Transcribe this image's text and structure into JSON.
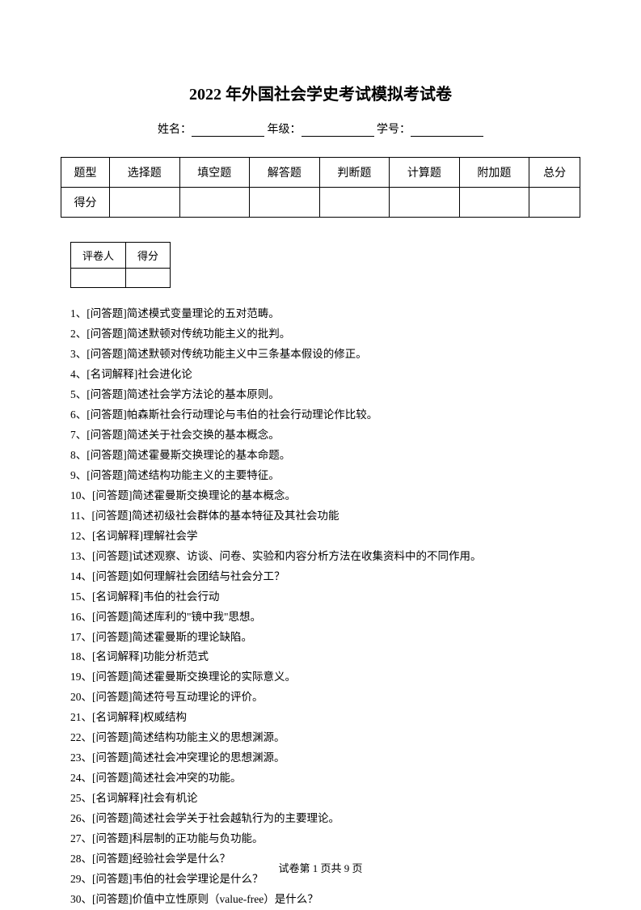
{
  "title": "2022 年外国社会学史考试模拟考试卷",
  "info": {
    "name_label": "姓名：",
    "grade_label": " 年级：",
    "id_label": " 学号："
  },
  "main_table": {
    "header_row": [
      "题型",
      "选择题",
      "填空题",
      "解答题",
      "判断题",
      "计算题",
      "附加题",
      "总分"
    ],
    "score_row_label": "得分"
  },
  "score_table": {
    "grader_label": "评卷人",
    "score_label": "得分"
  },
  "questions": [
    "1、[问答题]简述模式变量理论的五对范畴。",
    "2、[问答题]简述默顿对传统功能主义的批判。",
    "3、[问答题]简述默顿对传统功能主义中三条基本假设的修正。",
    "4、[名词解释]社会进化论",
    "5、[问答题]简述社会学方法论的基本原则。",
    "6、[问答题]帕森斯社会行动理论与韦伯的社会行动理论作比较。",
    "7、[问答题]简述关于社会交换的基本概念。",
    "8、[问答题]简述霍曼斯交换理论的基本命题。",
    "9、[问答题]简述结构功能主义的主要特征。",
    "10、[问答题]简述霍曼斯交换理论的基本概念。",
    "11、[问答题]简述初级社会群体的基本特征及其社会功能",
    "12、[名词解释]理解社会学",
    "13、[问答题]试述观察、访谈、问卷、实验和内容分析方法在收集资料中的不同作用。",
    "14、[问答题]如何理解社会团结与社会分工？",
    "15、[名词解释]韦伯的社会行动",
    "16、[问答题]简述库利的\"镜中我\"思想。",
    "17、[问答题]简述霍曼斯的理论缺陷。",
    "18、[名词解释]功能分析范式",
    "19、[问答题]简述霍曼斯交换理论的实际意义。",
    "20、[问答题]简述符号互动理论的评价。",
    "21、[名词解释]权威结构",
    "22、[问答题]简述结构功能主义的思想渊源。",
    "23、[问答题]简述社会冲突理论的思想渊源。",
    "24、[问答题]简述社会冲突的功能。",
    "25、[名词解释]社会有机论",
    "26、[问答题]简述社会学关于社会越轨行为的主要理论。",
    "27、[问答题]科层制的正功能与负功能。",
    "28、[问答题]经验社会学是什么？",
    "29、[问答题]韦伯的社会学理论是什么？",
    "30、[问答题]价值中立性原则（value-free）是什么？"
  ],
  "footer": "试卷第 1 页共 9 页"
}
